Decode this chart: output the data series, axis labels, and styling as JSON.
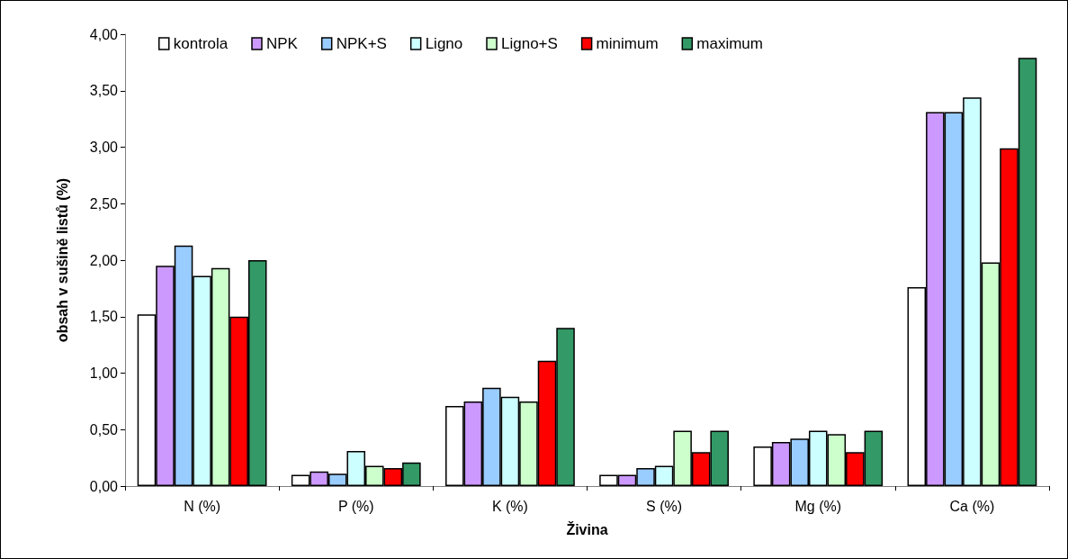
{
  "chart_data": {
    "type": "bar",
    "xlabel": "Živina",
    "ylabel": "obsah v sušině listů (%)",
    "categories": [
      "N (%)",
      "P (%)",
      "K (%)",
      "S (%)",
      "Mg (%)",
      "Ca (%)"
    ],
    "series": [
      {
        "name": "kontrola",
        "color": "#ffffff",
        "values": [
          1.52,
          0.1,
          0.71,
          0.1,
          0.35,
          1.76
        ]
      },
      {
        "name": "NPK",
        "color": "#cc99ff",
        "values": [
          1.95,
          0.13,
          0.75,
          0.1,
          0.39,
          3.31
        ]
      },
      {
        "name": "NPK+S",
        "color": "#99ccff",
        "values": [
          2.13,
          0.11,
          0.87,
          0.16,
          0.42,
          3.31
        ]
      },
      {
        "name": "Ligno",
        "color": "#ccffff",
        "values": [
          1.86,
          0.31,
          0.79,
          0.18,
          0.49,
          3.44
        ]
      },
      {
        "name": "Ligno+S",
        "color": "#ccffcc",
        "values": [
          1.93,
          0.18,
          0.75,
          0.49,
          0.46,
          1.98
        ]
      },
      {
        "name": "minimum",
        "color": "#ff0000",
        "values": [
          1.5,
          0.16,
          1.11,
          0.3,
          0.3,
          2.99
        ]
      },
      {
        "name": "maximum",
        "color": "#339966",
        "values": [
          2.0,
          0.21,
          1.4,
          0.49,
          0.49,
          3.79
        ]
      }
    ],
    "ylim": [
      0,
      4
    ],
    "yticks": [
      {
        "value": 0,
        "label": "0,00"
      },
      {
        "value": 0.5,
        "label": "0,50"
      },
      {
        "value": 1,
        "label": "1,00"
      },
      {
        "value": 1.5,
        "label": "1,50"
      },
      {
        "value": 2,
        "label": "2,00"
      },
      {
        "value": 2.5,
        "label": "2,50"
      },
      {
        "value": 3,
        "label": "3,00"
      },
      {
        "value": 3.5,
        "label": "3,50"
      },
      {
        "value": 4,
        "label": "4,00"
      }
    ],
    "grid": false,
    "legend": "top"
  }
}
